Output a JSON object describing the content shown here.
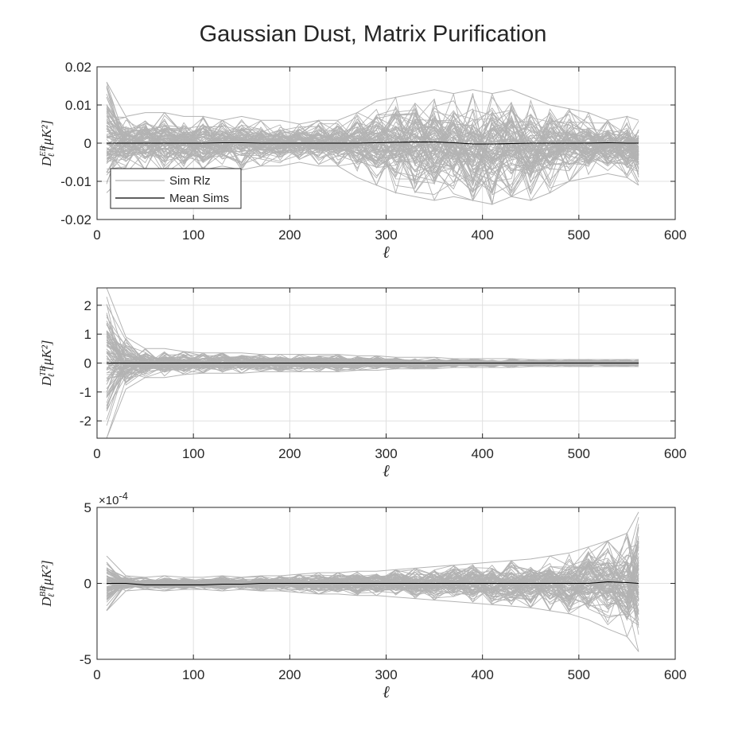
{
  "figure": {
    "title": "Gaussian Dust, Matrix Purification"
  },
  "colors": {
    "sims": "#b3b3b3",
    "mean": "#000000",
    "grid": "#e0e0e0",
    "axis": "#262626"
  },
  "legend": {
    "entries": [
      "Sim Rlz",
      "Mean Sims"
    ],
    "placement": "bottom-left (top panel)"
  },
  "chart_data": [
    {
      "type": "line",
      "title": "Gaussian Dust, Matrix Purification",
      "xlabel": "ℓ",
      "ylabel": "D_ℓ^{EB} [μK²]",
      "ylabel_main": "D",
      "ylabel_sub": "ℓ",
      "ylabel_sup": "EB",
      "ylabel_unit": "[μK²]",
      "xlim": [
        0,
        600
      ],
      "ylim": [
        -0.02,
        0.02
      ],
      "xticks": [
        "0",
        "100",
        "200",
        "300",
        "400",
        "500",
        "600"
      ],
      "yticks": [
        "0.02",
        "0.01",
        "0",
        "-0.01",
        "-0.02"
      ],
      "ytick_values": [
        0.02,
        0.01,
        0,
        -0.01,
        -0.02
      ],
      "grid": true,
      "legend": [
        "Sim Rlz",
        "Mean Sims"
      ],
      "x": [
        10,
        30,
        50,
        70,
        90,
        110,
        130,
        150,
        170,
        190,
        210,
        230,
        250,
        270,
        290,
        310,
        330,
        350,
        370,
        390,
        410,
        430,
        450,
        470,
        490,
        510,
        530,
        550,
        562
      ],
      "series": [
        {
          "name": "Mean Sims",
          "values": [
            0,
            0,
            0,
            0,
            0,
            0,
            0.0001,
            0.0001,
            0,
            0,
            0,
            0,
            0,
            0,
            0.0001,
            0.0002,
            0.0003,
            0.0003,
            0.0001,
            -0.0002,
            -0.0002,
            -0.0001,
            0,
            0,
            0,
            0,
            0.0001,
            0,
            0
          ]
        },
        {
          "name": "Sim Rlz",
          "envelope_max": [
            0.016,
            0.007,
            0.008,
            0.008,
            0.007,
            0.007,
            0.006,
            0.007,
            0.006,
            0.006,
            0.005,
            0.006,
            0.006,
            0.008,
            0.011,
            0.012,
            0.013,
            0.014,
            0.013,
            0.014,
            0.013,
            0.014,
            0.012,
            0.01,
            0.009,
            0.008,
            0.006,
            0.007,
            0.006
          ],
          "envelope_min": [
            -0.013,
            -0.008,
            -0.007,
            -0.008,
            -0.007,
            -0.007,
            -0.006,
            -0.007,
            -0.006,
            -0.006,
            -0.005,
            -0.006,
            -0.006,
            -0.009,
            -0.011,
            -0.013,
            -0.014,
            -0.015,
            -0.014,
            -0.015,
            -0.016,
            -0.014,
            -0.015,
            -0.013,
            -0.01,
            -0.009,
            -0.008,
            -0.009,
            -0.011
          ]
        }
      ]
    },
    {
      "type": "line",
      "xlabel": "ℓ",
      "ylabel": "D_ℓ^{TB} [μK²]",
      "ylabel_main": "D",
      "ylabel_sub": "ℓ",
      "ylabel_sup": "TB",
      "ylabel_unit": "[μK²]",
      "xlim": [
        0,
        600
      ],
      "ylim": [
        -2.6,
        2.6
      ],
      "xticks": [
        "0",
        "100",
        "200",
        "300",
        "400",
        "500",
        "600"
      ],
      "yticks": [
        "2",
        "1",
        "0",
        "-1",
        "-2"
      ],
      "ytick_values": [
        2,
        1,
        0,
        -1,
        -2
      ],
      "grid": true,
      "x": [
        10,
        30,
        50,
        70,
        90,
        110,
        130,
        150,
        170,
        190,
        210,
        230,
        250,
        270,
        290,
        310,
        330,
        350,
        370,
        390,
        410,
        430,
        450,
        470,
        490,
        510,
        530,
        550,
        562
      ],
      "series": [
        {
          "name": "Mean Sims",
          "values": [
            0,
            0,
            0,
            0,
            0,
            0,
            0,
            0,
            0,
            0,
            0,
            0,
            0,
            0,
            0,
            0,
            0,
            0,
            0,
            0,
            0,
            0,
            0,
            0,
            0,
            0,
            0,
            0,
            0
          ]
        },
        {
          "name": "Sim Rlz",
          "envelope_max": [
            2.6,
            0.9,
            0.5,
            0.5,
            0.4,
            0.35,
            0.35,
            0.35,
            0.3,
            0.3,
            0.3,
            0.3,
            0.3,
            0.25,
            0.25,
            0.2,
            0.2,
            0.2,
            0.15,
            0.15,
            0.15,
            0.15,
            0.12,
            0.12,
            0.12,
            0.12,
            0.12,
            0.12,
            0.12
          ],
          "envelope_min": [
            -2.6,
            -0.9,
            -0.5,
            -0.5,
            -0.4,
            -0.35,
            -0.35,
            -0.35,
            -0.3,
            -0.3,
            -0.3,
            -0.3,
            -0.3,
            -0.25,
            -0.25,
            -0.2,
            -0.2,
            -0.2,
            -0.15,
            -0.15,
            -0.15,
            -0.15,
            -0.12,
            -0.12,
            -0.12,
            -0.12,
            -0.12,
            -0.12,
            -0.12
          ]
        }
      ]
    },
    {
      "type": "line",
      "xlabel": "ℓ",
      "ylabel": "D_ℓ^{BB} [μK²]",
      "ylabel_main": "D",
      "ylabel_sub": "ℓ",
      "ylabel_sup": "BB",
      "ylabel_unit": "[μK²]",
      "exponent_label": "×10",
      "exponent_power": "-4",
      "xlim": [
        0,
        600
      ],
      "ylim": [
        -5,
        5
      ],
      "xticks": [
        "0",
        "100",
        "200",
        "300",
        "400",
        "500",
        "600"
      ],
      "yticks": [
        "5",
        "0",
        "-5"
      ],
      "ytick_values": [
        5,
        0,
        -5
      ],
      "grid": true,
      "x": [
        10,
        30,
        50,
        70,
        90,
        110,
        130,
        150,
        170,
        190,
        210,
        230,
        250,
        270,
        290,
        310,
        330,
        350,
        370,
        390,
        410,
        430,
        450,
        470,
        490,
        510,
        530,
        550,
        562
      ],
      "series": [
        {
          "name": "Mean Sims",
          "values": [
            0,
            0,
            -0.1,
            -0.1,
            -0.1,
            -0.1,
            -0.05,
            -0.05,
            0,
            0,
            0,
            0,
            0,
            0,
            0,
            0,
            0,
            0,
            0,
            0,
            0,
            0,
            0,
            0,
            0,
            0,
            0.1,
            0.05,
            0
          ]
        },
        {
          "name": "Sim Rlz",
          "envelope_max": [
            1.8,
            0.5,
            0.4,
            0.5,
            0.4,
            0.4,
            0.5,
            0.4,
            0.5,
            0.5,
            0.6,
            0.7,
            0.7,
            0.8,
            0.8,
            0.9,
            1.0,
            1.1,
            1.2,
            1.3,
            1.4,
            1.5,
            1.6,
            1.8,
            2.0,
            2.4,
            2.8,
            3.3,
            4.7
          ],
          "envelope_min": [
            -1.8,
            -0.5,
            -0.4,
            -0.5,
            -0.4,
            -0.4,
            -0.5,
            -0.4,
            -0.5,
            -0.5,
            -0.6,
            -0.7,
            -0.7,
            -0.8,
            -0.8,
            -0.9,
            -1.0,
            -1.1,
            -1.2,
            -1.3,
            -1.4,
            -1.5,
            -1.6,
            -1.8,
            -2.0,
            -2.4,
            -3.0,
            -3.5,
            -4.5
          ]
        }
      ]
    }
  ]
}
